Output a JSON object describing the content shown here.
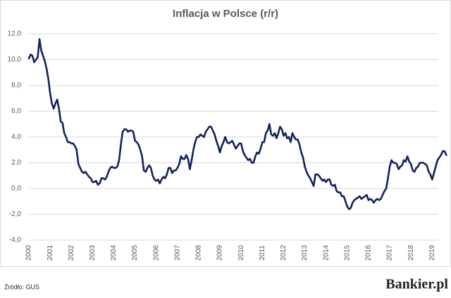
{
  "chart_data": {
    "type": "line",
    "title": "Inflacja w Polsce (r/r)",
    "categories": [
      "2000",
      null,
      null,
      null,
      null,
      null,
      null,
      null,
      null,
      null,
      null,
      null,
      "2001",
      null,
      null,
      null,
      null,
      null,
      null,
      null,
      null,
      null,
      null,
      null,
      "2002",
      null,
      null,
      null,
      null,
      null,
      null,
      null,
      null,
      null,
      null,
      null,
      "2003",
      null,
      null,
      null,
      null,
      null,
      null,
      null,
      null,
      null,
      null,
      null,
      "2004",
      null,
      null,
      null,
      null,
      null,
      null,
      null,
      null,
      null,
      null,
      null,
      "2005",
      null,
      null,
      null,
      null,
      null,
      null,
      null,
      null,
      null,
      null,
      null,
      "2006",
      null,
      null,
      null,
      null,
      null,
      null,
      null,
      null,
      null,
      null,
      null,
      "2007",
      null,
      null,
      null,
      null,
      null,
      null,
      null,
      null,
      null,
      null,
      null,
      "2008",
      null,
      null,
      null,
      null,
      null,
      null,
      null,
      null,
      null,
      null,
      null,
      "2009",
      null,
      null,
      null,
      null,
      null,
      null,
      null,
      null,
      null,
      null,
      null,
      "2010",
      null,
      null,
      null,
      null,
      null,
      null,
      null,
      null,
      null,
      null,
      null,
      "2011",
      null,
      null,
      null,
      null,
      null,
      null,
      null,
      null,
      null,
      null,
      null,
      "2012",
      null,
      null,
      null,
      null,
      null,
      null,
      null,
      null,
      null,
      null,
      null,
      "2013",
      null,
      null,
      null,
      null,
      null,
      null,
      null,
      null,
      null,
      null,
      null,
      "2014",
      null,
      null,
      null,
      null,
      null,
      null,
      null,
      null,
      null,
      null,
      null,
      "2015",
      null,
      null,
      null,
      null,
      null,
      null,
      null,
      null,
      null,
      null,
      null,
      "2016",
      null,
      null,
      null,
      null,
      null,
      null,
      null,
      null,
      null,
      null,
      null,
      "2017",
      null,
      null,
      null,
      null,
      null,
      null,
      null,
      null,
      null,
      null,
      null,
      "2018",
      null,
      null,
      null,
      null,
      null,
      null,
      null,
      null,
      null,
      null,
      null,
      "2019",
      null,
      null,
      null,
      null,
      null,
      null,
      null,
      null
    ],
    "series": [
      {
        "name": "Inflacja",
        "color": "#13235b",
        "values": [
          10.1,
          10.4,
          10.3,
          9.8,
          10.0,
          10.2,
          11.6,
          10.7,
          10.3,
          9.9,
          9.3,
          8.5,
          7.4,
          6.6,
          6.2,
          6.6,
          6.9,
          6.2,
          5.2,
          5.1,
          4.3,
          4.0,
          3.6,
          3.6,
          3.5,
          3.5,
          3.3,
          3.0,
          1.9,
          1.6,
          1.3,
          1.2,
          1.3,
          1.1,
          0.9,
          0.8,
          0.5,
          0.5,
          0.6,
          0.3,
          0.4,
          0.8,
          0.8,
          0.7,
          0.9,
          1.3,
          1.6,
          1.7,
          1.6,
          1.6,
          1.7,
          2.2,
          3.4,
          4.4,
          4.6,
          4.6,
          4.4,
          4.5,
          4.5,
          4.4,
          3.7,
          3.6,
          3.4,
          3.0,
          2.5,
          1.4,
          1.3,
          1.6,
          1.8,
          1.6,
          1.0,
          0.7,
          0.6,
          0.7,
          0.4,
          0.7,
          0.9,
          0.8,
          1.1,
          1.6,
          1.6,
          1.2,
          1.4,
          1.4,
          1.6,
          1.9,
          2.5,
          2.3,
          2.3,
          2.6,
          2.3,
          1.5,
          2.2,
          3.0,
          3.6,
          4.0,
          4.0,
          4.2,
          4.1,
          4.0,
          4.4,
          4.6,
          4.8,
          4.8,
          4.5,
          4.2,
          3.7,
          3.3,
          2.8,
          3.3,
          3.6,
          4.0,
          3.6,
          3.5,
          3.6,
          3.7,
          3.4,
          3.1,
          3.3,
          3.5,
          3.5,
          2.9,
          2.6,
          2.4,
          2.2,
          2.3,
          2.0,
          2.0,
          2.5,
          2.8,
          2.7,
          3.1,
          3.6,
          3.6,
          4.3,
          4.5,
          5.0,
          4.2,
          4.1,
          4.3,
          3.9,
          4.3,
          4.8,
          4.6,
          4.1,
          4.3,
          3.9,
          4.0,
          3.6,
          4.3,
          4.0,
          3.8,
          3.8,
          3.4,
          2.8,
          2.4,
          1.7,
          1.3,
          1.0,
          0.8,
          0.5,
          0.2,
          1.1,
          1.1,
          1.0,
          0.8,
          0.6,
          0.7,
          0.5,
          0.7,
          0.7,
          0.3,
          0.2,
          0.3,
          -0.2,
          -0.3,
          -0.3,
          -0.6,
          -0.6,
          -1.0,
          -1.4,
          -1.6,
          -1.5,
          -1.1,
          -0.9,
          -0.8,
          -0.7,
          -0.6,
          -0.8,
          -0.7,
          -0.6,
          -0.5,
          -0.9,
          -0.8,
          -0.9,
          -1.1,
          -0.9,
          -0.8,
          -0.9,
          -0.8,
          -0.5,
          -0.2,
          0.0,
          0.8,
          1.7,
          2.2,
          2.0,
          2.0,
          1.9,
          1.5,
          1.7,
          1.8,
          2.2,
          2.1,
          2.5,
          2.1,
          1.9,
          1.4,
          1.3,
          1.6,
          1.7,
          2.0,
          2.0,
          2.0,
          1.9,
          1.8,
          1.3,
          1.1,
          0.7,
          1.2,
          1.7,
          2.2,
          2.4,
          2.6,
          2.9,
          2.9,
          2.6
        ]
      }
    ],
    "ylim": [
      -4,
      12
    ],
    "yticks": [
      {
        "value": -4,
        "label": "-4,0"
      },
      {
        "value": -2,
        "label": "-2,0"
      },
      {
        "value": 0,
        "label": "0,0"
      },
      {
        "value": 2,
        "label": "2,0"
      },
      {
        "value": 4,
        "label": "4,0"
      },
      {
        "value": 6,
        "label": "6,0"
      },
      {
        "value": 8,
        "label": "8,0"
      },
      {
        "value": 10,
        "label": "10,0"
      },
      {
        "value": 12,
        "label": "12,0"
      }
    ],
    "grid": true,
    "source": "Źródło: GUS",
    "brand": "Bankier.pl"
  }
}
